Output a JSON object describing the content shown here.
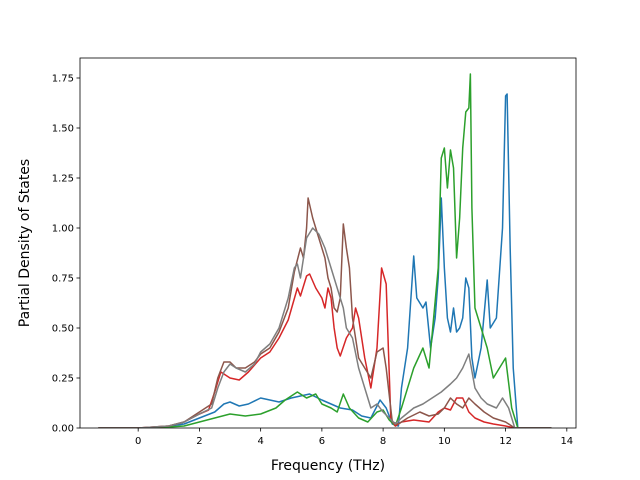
{
  "chart_data": {
    "type": "line",
    "title": "",
    "xlabel": "Frequency (THz)",
    "ylabel": "Partial Density of States",
    "xlim": [
      -1.9,
      14.3
    ],
    "ylim": [
      0,
      1.85
    ],
    "xticks": [
      0,
      2,
      4,
      6,
      8,
      10,
      12,
      14
    ],
    "xtick_labels": [
      "0",
      "2",
      "4",
      "6",
      "8",
      "10",
      "12",
      "14"
    ],
    "yticks": [
      0,
      0.25,
      0.5,
      0.75,
      1.0,
      1.25,
      1.5,
      1.75
    ],
    "ytick_labels": [
      "0.00",
      "0.25",
      "0.50",
      "0.75",
      "1.00",
      "1.25",
      "1.50",
      "1.75"
    ],
    "grid": false,
    "legend": "none",
    "series": [
      {
        "color": "#1f77b4",
        "points": [
          [
            -1.3,
            0
          ],
          [
            0,
            0
          ],
          [
            0.8,
            0.005
          ],
          [
            1.5,
            0.02
          ],
          [
            2.0,
            0.05
          ],
          [
            2.5,
            0.08
          ],
          [
            2.8,
            0.12
          ],
          [
            3.0,
            0.13
          ],
          [
            3.3,
            0.11
          ],
          [
            3.6,
            0.12
          ],
          [
            4.0,
            0.15
          ],
          [
            4.3,
            0.14
          ],
          [
            4.6,
            0.13
          ],
          [
            5.0,
            0.15
          ],
          [
            5.3,
            0.16
          ],
          [
            5.6,
            0.17
          ],
          [
            6.0,
            0.14
          ],
          [
            6.3,
            0.12
          ],
          [
            6.6,
            0.1
          ],
          [
            7.0,
            0.09
          ],
          [
            7.3,
            0.06
          ],
          [
            7.6,
            0.05
          ],
          [
            7.9,
            0.14
          ],
          [
            8.1,
            0.1
          ],
          [
            8.3,
            0.02
          ],
          [
            8.5,
            0.01
          ],
          [
            8.6,
            0.2
          ],
          [
            8.8,
            0.4
          ],
          [
            9.0,
            0.86
          ],
          [
            9.1,
            0.65
          ],
          [
            9.3,
            0.6
          ],
          [
            9.4,
            0.63
          ],
          [
            9.55,
            0.4
          ],
          [
            9.7,
            0.55
          ],
          [
            9.8,
            0.75
          ],
          [
            9.9,
            1.15
          ],
          [
            10.0,
            0.8
          ],
          [
            10.1,
            0.55
          ],
          [
            10.2,
            0.48
          ],
          [
            10.3,
            0.6
          ],
          [
            10.4,
            0.48
          ],
          [
            10.5,
            0.5
          ],
          [
            10.6,
            0.55
          ],
          [
            10.7,
            0.75
          ],
          [
            10.8,
            0.7
          ],
          [
            10.9,
            0.35
          ],
          [
            11.0,
            0.25
          ],
          [
            11.2,
            0.4
          ],
          [
            11.4,
            0.74
          ],
          [
            11.5,
            0.5
          ],
          [
            11.7,
            0.55
          ],
          [
            11.9,
            1.0
          ],
          [
            12.0,
            1.66
          ],
          [
            12.05,
            1.67
          ],
          [
            12.15,
            0.9
          ],
          [
            12.25,
            0.3
          ],
          [
            12.4,
            0
          ],
          [
            13.5,
            0
          ]
        ]
      },
      {
        "color": "#2ca02c",
        "points": [
          [
            -1.3,
            0
          ],
          [
            0,
            0
          ],
          [
            1.0,
            0.005
          ],
          [
            1.5,
            0.01
          ],
          [
            2.0,
            0.03
          ],
          [
            2.5,
            0.05
          ],
          [
            3.0,
            0.07
          ],
          [
            3.5,
            0.06
          ],
          [
            4.0,
            0.07
          ],
          [
            4.5,
            0.1
          ],
          [
            4.8,
            0.14
          ],
          [
            5.0,
            0.16
          ],
          [
            5.2,
            0.18
          ],
          [
            5.5,
            0.15
          ],
          [
            5.8,
            0.17
          ],
          [
            6.0,
            0.12
          ],
          [
            6.3,
            0.1
          ],
          [
            6.5,
            0.08
          ],
          [
            6.7,
            0.17
          ],
          [
            6.9,
            0.1
          ],
          [
            7.2,
            0.05
          ],
          [
            7.5,
            0.03
          ],
          [
            7.8,
            0.08
          ],
          [
            8.0,
            0.09
          ],
          [
            8.2,
            0.04
          ],
          [
            8.4,
            0.01
          ],
          [
            8.6,
            0.1
          ],
          [
            9.0,
            0.3
          ],
          [
            9.3,
            0.4
          ],
          [
            9.5,
            0.3
          ],
          [
            9.8,
            0.8
          ],
          [
            9.9,
            1.35
          ],
          [
            10.0,
            1.4
          ],
          [
            10.1,
            1.2
          ],
          [
            10.2,
            1.39
          ],
          [
            10.3,
            1.3
          ],
          [
            10.4,
            0.85
          ],
          [
            10.5,
            1.05
          ],
          [
            10.6,
            1.4
          ],
          [
            10.7,
            1.58
          ],
          [
            10.8,
            1.6
          ],
          [
            10.85,
            1.77
          ],
          [
            10.9,
            1.1
          ],
          [
            11.0,
            0.6
          ],
          [
            11.2,
            0.5
          ],
          [
            11.4,
            0.4
          ],
          [
            11.6,
            0.25
          ],
          [
            11.8,
            0.3
          ],
          [
            12.0,
            0.35
          ],
          [
            12.2,
            0.1
          ],
          [
            12.4,
            0
          ],
          [
            13.5,
            0
          ]
        ]
      },
      {
        "color": "#d62728",
        "points": [
          [
            -1.3,
            0
          ],
          [
            0,
            0
          ],
          [
            1.0,
            0.01
          ],
          [
            1.5,
            0.03
          ],
          [
            2.0,
            0.07
          ],
          [
            2.3,
            0.09
          ],
          [
            2.5,
            0.18
          ],
          [
            2.7,
            0.28
          ],
          [
            3.0,
            0.25
          ],
          [
            3.3,
            0.24
          ],
          [
            3.6,
            0.28
          ],
          [
            4.0,
            0.35
          ],
          [
            4.3,
            0.38
          ],
          [
            4.6,
            0.45
          ],
          [
            4.9,
            0.54
          ],
          [
            5.2,
            0.7
          ],
          [
            5.3,
            0.66
          ],
          [
            5.5,
            0.76
          ],
          [
            5.6,
            0.77
          ],
          [
            5.8,
            0.7
          ],
          [
            6.0,
            0.65
          ],
          [
            6.1,
            0.6
          ],
          [
            6.2,
            0.7
          ],
          [
            6.3,
            0.65
          ],
          [
            6.4,
            0.5
          ],
          [
            6.5,
            0.4
          ],
          [
            6.6,
            0.36
          ],
          [
            6.8,
            0.45
          ],
          [
            7.0,
            0.5
          ],
          [
            7.1,
            0.6
          ],
          [
            7.2,
            0.55
          ],
          [
            7.4,
            0.35
          ],
          [
            7.6,
            0.2
          ],
          [
            7.8,
            0.4
          ],
          [
            7.95,
            0.8
          ],
          [
            8.1,
            0.72
          ],
          [
            8.25,
            0.05
          ],
          [
            8.4,
            0.01
          ],
          [
            8.6,
            0.03
          ],
          [
            9.0,
            0.04
          ],
          [
            9.5,
            0.03
          ],
          [
            9.8,
            0.08
          ],
          [
            10.0,
            0.1
          ],
          [
            10.2,
            0.09
          ],
          [
            10.4,
            0.15
          ],
          [
            10.6,
            0.15
          ],
          [
            10.8,
            0.08
          ],
          [
            11.0,
            0.05
          ],
          [
            11.3,
            0.03
          ],
          [
            11.6,
            0.02
          ],
          [
            12.0,
            0.01
          ],
          [
            12.3,
            0
          ],
          [
            13.5,
            0
          ]
        ]
      },
      {
        "color": "#8c564b",
        "points": [
          [
            -1.3,
            0
          ],
          [
            0,
            0
          ],
          [
            1.0,
            0.01
          ],
          [
            1.5,
            0.03
          ],
          [
            2.0,
            0.08
          ],
          [
            2.4,
            0.12
          ],
          [
            2.6,
            0.25
          ],
          [
            2.8,
            0.33
          ],
          [
            3.0,
            0.33
          ],
          [
            3.2,
            0.3
          ],
          [
            3.5,
            0.3
          ],
          [
            3.8,
            0.33
          ],
          [
            4.0,
            0.37
          ],
          [
            4.3,
            0.4
          ],
          [
            4.6,
            0.48
          ],
          [
            4.9,
            0.6
          ],
          [
            5.1,
            0.78
          ],
          [
            5.3,
            0.9
          ],
          [
            5.4,
            0.85
          ],
          [
            5.5,
            1.0
          ],
          [
            5.55,
            1.15
          ],
          [
            5.7,
            1.05
          ],
          [
            5.9,
            0.95
          ],
          [
            6.1,
            0.85
          ],
          [
            6.2,
            0.75
          ],
          [
            6.3,
            0.7
          ],
          [
            6.4,
            0.6
          ],
          [
            6.5,
            0.58
          ],
          [
            6.6,
            0.65
          ],
          [
            6.7,
            1.02
          ],
          [
            6.8,
            0.9
          ],
          [
            6.9,
            0.8
          ],
          [
            7.0,
            0.55
          ],
          [
            7.2,
            0.35
          ],
          [
            7.4,
            0.3
          ],
          [
            7.6,
            0.25
          ],
          [
            7.8,
            0.38
          ],
          [
            8.0,
            0.4
          ],
          [
            8.1,
            0.3
          ],
          [
            8.3,
            0.03
          ],
          [
            8.5,
            0.02
          ],
          [
            8.8,
            0.05
          ],
          [
            9.2,
            0.08
          ],
          [
            9.5,
            0.06
          ],
          [
            9.8,
            0.07
          ],
          [
            10.0,
            0.1
          ],
          [
            10.2,
            0.15
          ],
          [
            10.4,
            0.12
          ],
          [
            10.6,
            0.1
          ],
          [
            10.8,
            0.15
          ],
          [
            11.0,
            0.12
          ],
          [
            11.3,
            0.08
          ],
          [
            11.6,
            0.05
          ],
          [
            12.0,
            0.03
          ],
          [
            12.3,
            0
          ],
          [
            13.5,
            0
          ]
        ]
      },
      {
        "color": "#7f7f7f",
        "points": [
          [
            -1.3,
            0
          ],
          [
            0,
            0
          ],
          [
            1.0,
            0.01
          ],
          [
            1.5,
            0.03
          ],
          [
            2.0,
            0.07
          ],
          [
            2.4,
            0.1
          ],
          [
            2.6,
            0.2
          ],
          [
            2.8,
            0.28
          ],
          [
            3.0,
            0.32
          ],
          [
            3.2,
            0.3
          ],
          [
            3.5,
            0.28
          ],
          [
            3.8,
            0.32
          ],
          [
            4.0,
            0.38
          ],
          [
            4.3,
            0.42
          ],
          [
            4.6,
            0.5
          ],
          [
            4.9,
            0.65
          ],
          [
            5.1,
            0.8
          ],
          [
            5.2,
            0.82
          ],
          [
            5.3,
            0.75
          ],
          [
            5.5,
            0.95
          ],
          [
            5.7,
            1.0
          ],
          [
            5.9,
            0.97
          ],
          [
            6.1,
            0.9
          ],
          [
            6.3,
            0.8
          ],
          [
            6.5,
            0.7
          ],
          [
            6.7,
            0.6
          ],
          [
            6.8,
            0.5
          ],
          [
            7.0,
            0.45
          ],
          [
            7.2,
            0.3
          ],
          [
            7.4,
            0.2
          ],
          [
            7.6,
            0.1
          ],
          [
            7.8,
            0.12
          ],
          [
            8.0,
            0.08
          ],
          [
            8.2,
            0.05
          ],
          [
            8.4,
            0.02
          ],
          [
            8.6,
            0.05
          ],
          [
            9.0,
            0.1
          ],
          [
            9.3,
            0.12
          ],
          [
            9.6,
            0.15
          ],
          [
            9.9,
            0.18
          ],
          [
            10.2,
            0.22
          ],
          [
            10.4,
            0.25
          ],
          [
            10.6,
            0.3
          ],
          [
            10.8,
            0.37
          ],
          [
            11.0,
            0.2
          ],
          [
            11.2,
            0.15
          ],
          [
            11.4,
            0.12
          ],
          [
            11.7,
            0.1
          ],
          [
            11.9,
            0.15
          ],
          [
            12.1,
            0.1
          ],
          [
            12.3,
            0
          ],
          [
            13.5,
            0
          ]
        ]
      }
    ]
  }
}
